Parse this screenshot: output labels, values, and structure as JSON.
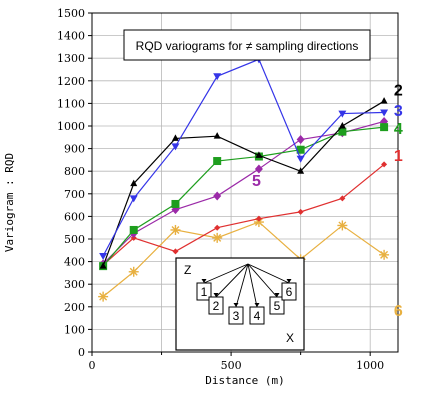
{
  "chart_data": {
    "type": "line",
    "title": "RQD variograms for ≠ sampling directions",
    "xlabel": "Distance (m)",
    "ylabel": "Variogram : RQD",
    "xlim": [
      0,
      1100
    ],
    "ylim": [
      0,
      1500
    ],
    "xticks": [
      0,
      500,
      1000
    ],
    "xtick_labels": [
      "0",
      "500",
      "1000"
    ],
    "yticks": [
      0,
      100,
      200,
      300,
      400,
      500,
      600,
      700,
      800,
      900,
      1000,
      1100,
      1200,
      1300,
      1400,
      1500
    ],
    "ytick_labels": [
      "0",
      "100",
      "200",
      "300",
      "400",
      "500",
      "600",
      "700",
      "800",
      "900",
      "1000",
      "1100",
      "1200",
      "1300",
      "1400",
      "1500"
    ],
    "grid": true,
    "series": [
      {
        "name": "1",
        "color": "#e03030",
        "marker": "diamond-small",
        "x": [
          40,
          150,
          300,
          450,
          600,
          750,
          900,
          1050
        ],
        "y": [
          385,
          505,
          445,
          550,
          590,
          620,
          680,
          830
        ]
      },
      {
        "name": "2",
        "color": "#000000",
        "marker": "triangle-up",
        "x": [
          40,
          150,
          300,
          450,
          600,
          750,
          900,
          1050
        ],
        "y": [
          380,
          745,
          945,
          955,
          870,
          800,
          1000,
          1110
        ]
      },
      {
        "name": "3",
        "color": "#3535e8",
        "marker": "triangle-down",
        "x": [
          40,
          150,
          300,
          450,
          600,
          750,
          900,
          1050
        ],
        "y": [
          425,
          680,
          910,
          1220,
          1295,
          855,
          1055,
          1060
        ]
      },
      {
        "name": "4",
        "color": "#1e9e1e",
        "marker": "square",
        "x": [
          40,
          150,
          300,
          450,
          600,
          750,
          900,
          1050
        ],
        "y": [
          380,
          540,
          655,
          845,
          865,
          895,
          975,
          995
        ]
      },
      {
        "name": "5",
        "color": "#9b2aa8",
        "marker": "diamond",
        "x": [
          40,
          150,
          300,
          450,
          600,
          750,
          900,
          1050
        ],
        "y": [
          390,
          525,
          630,
          690,
          810,
          940,
          970,
          1020
        ]
      },
      {
        "name": "6",
        "color": "#e8b040",
        "marker": "asterisk",
        "x": [
          40,
          150,
          300,
          450,
          600,
          750,
          900,
          1050
        ],
        "y": [
          245,
          355,
          540,
          505,
          575,
          410,
          560,
          430
        ]
      }
    ],
    "series_labels": [
      "1",
      "2",
      "3",
      "4",
      "5",
      "6"
    ],
    "inset": {
      "axis_z": "Z",
      "axis_x": "X",
      "boxes": [
        "1",
        "2",
        "3",
        "4",
        "5",
        "6"
      ]
    }
  }
}
